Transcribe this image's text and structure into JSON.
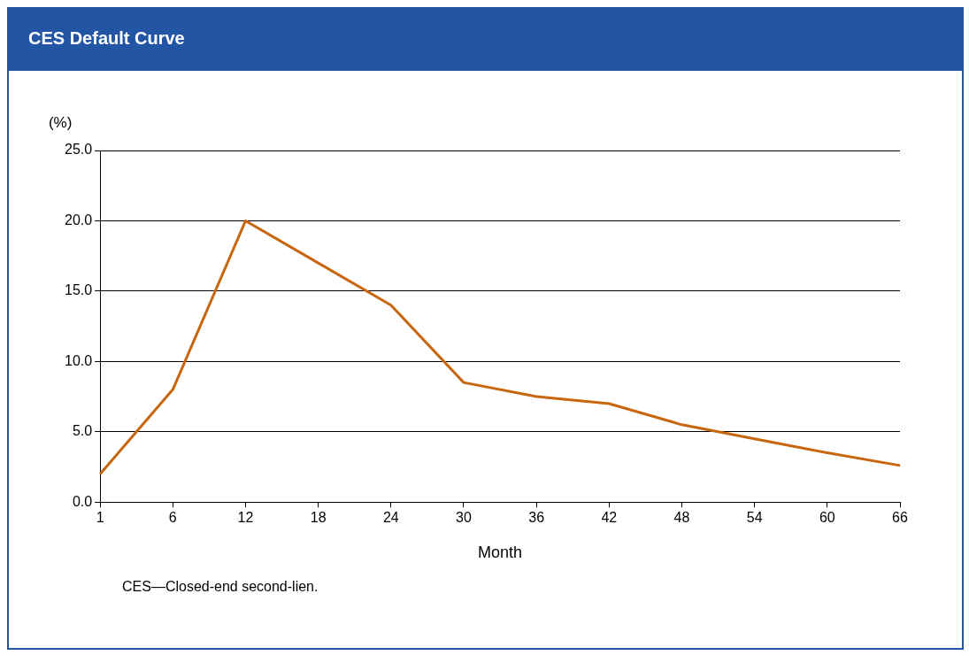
{
  "chart_data": {
    "type": "line",
    "title": "CES Default Curve",
    "ylabel": "(%)",
    "xlabel": "Month",
    "categories": [
      "1",
      "6",
      "12",
      "18",
      "24",
      "30",
      "36",
      "42",
      "48",
      "54",
      "60",
      "66"
    ],
    "series": [
      {
        "color": "#c8660e",
        "values": [
          2.0,
          8.0,
          20.0,
          17.0,
          14.0,
          8.5,
          7.5,
          7.0,
          5.5,
          4.5,
          3.5,
          2.6
        ]
      }
    ],
    "ylim": [
      0,
      25
    ],
    "yticks": [
      {
        "value": 0,
        "label": "0.0"
      },
      {
        "value": 5,
        "label": "5.0"
      },
      {
        "value": 10,
        "label": "10.0"
      },
      {
        "value": 15,
        "label": "15.0"
      },
      {
        "value": 20,
        "label": "20.0"
      },
      {
        "value": 25,
        "label": "25.0"
      }
    ],
    "grid": "y",
    "legend": false,
    "marker": "none",
    "line_style": "solid",
    "annotations": [
      "CES—Closed-end second-lien."
    ]
  }
}
